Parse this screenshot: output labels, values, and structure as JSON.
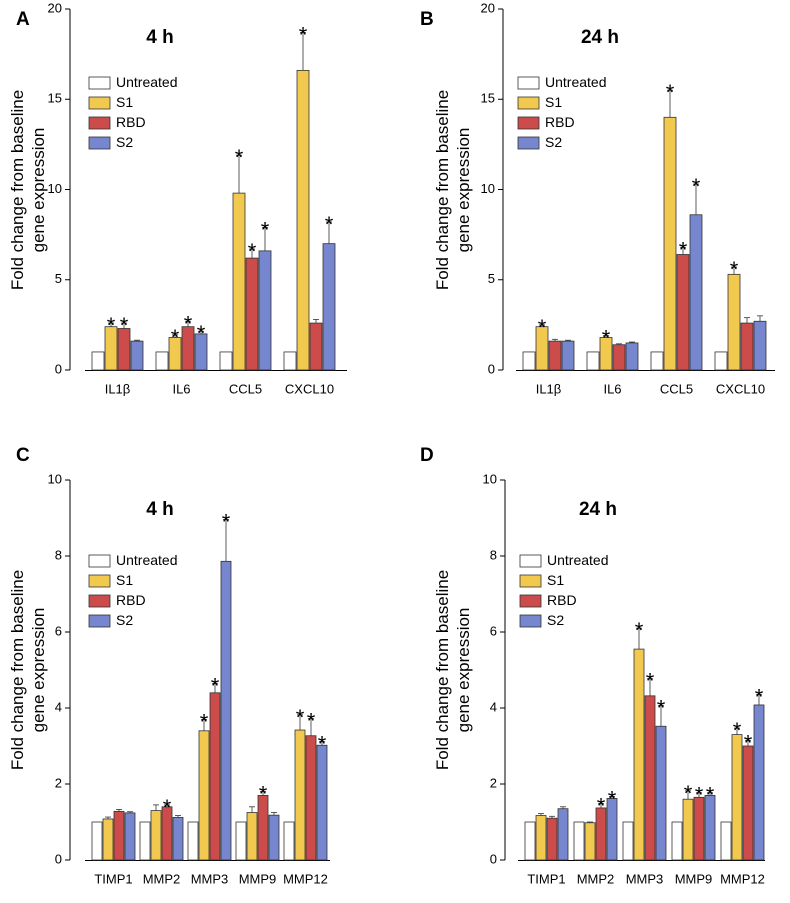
{
  "colors": {
    "Untreated": "#ffffff",
    "S1": "#f2c94f",
    "RBD": "#cc4b4b",
    "S2": "#7686cf"
  },
  "chart_data": [
    {
      "panel": "A",
      "type": "bar",
      "title": "4 h",
      "ylabel": [
        "Fold change from baseline",
        "gene expression"
      ],
      "ylim": [
        0,
        20
      ],
      "yticks": [
        0,
        5,
        10,
        15,
        20
      ],
      "categories": [
        "IL1β",
        "IL6",
        "CCL5",
        "CXCL10"
      ],
      "series": [
        {
          "name": "Untreated",
          "values": [
            1,
            1,
            1,
            1
          ],
          "errors": [
            0,
            0,
            0,
            0
          ],
          "sig": [
            false,
            false,
            false,
            false
          ]
        },
        {
          "name": "S1",
          "values": [
            2.4,
            1.8,
            9.8,
            16.6
          ],
          "errors": [
            0.2,
            0.15,
            2.1,
            2.1
          ],
          "sig": [
            true,
            true,
            true,
            true
          ]
        },
        {
          "name": "RBD",
          "values": [
            2.3,
            2.4,
            6.2,
            2.6
          ],
          "errors": [
            0.3,
            0.3,
            0.5,
            0.2
          ],
          "sig": [
            true,
            true,
            true,
            false
          ]
        },
        {
          "name": "S2",
          "values": [
            1.6,
            2.0,
            6.6,
            7.0
          ],
          "errors": [
            0.05,
            0.15,
            1.3,
            1.2
          ],
          "sig": [
            false,
            true,
            true,
            true
          ]
        }
      ],
      "legend": [
        "Untreated",
        "S1",
        "RBD",
        "S2"
      ],
      "legend_position": "top-left"
    },
    {
      "panel": "B",
      "type": "bar",
      "title": "24 h",
      "ylabel": [
        "Fold change from baseline",
        "gene expression"
      ],
      "ylim": [
        0,
        20
      ],
      "yticks": [
        0,
        5,
        10,
        15,
        20
      ],
      "categories": [
        "IL1β",
        "IL6",
        "CCL5",
        "CXCL10"
      ],
      "series": [
        {
          "name": "Untreated",
          "values": [
            1,
            1,
            1,
            1
          ],
          "errors": [
            0,
            0,
            0,
            0
          ],
          "sig": [
            false,
            false,
            false,
            false
          ]
        },
        {
          "name": "S1",
          "values": [
            2.4,
            1.8,
            14.0,
            5.3
          ],
          "errors": [
            0.1,
            0.1,
            1.5,
            0.4
          ],
          "sig": [
            true,
            true,
            true,
            true
          ]
        },
        {
          "name": "RBD",
          "values": [
            1.6,
            1.4,
            6.4,
            2.6
          ],
          "errors": [
            0.1,
            0.05,
            0.4,
            0.3
          ],
          "sig": [
            false,
            false,
            true,
            false
          ]
        },
        {
          "name": "S2",
          "values": [
            1.6,
            1.5,
            8.6,
            2.7
          ],
          "errors": [
            0.05,
            0.05,
            1.7,
            0.3
          ],
          "sig": [
            false,
            false,
            true,
            false
          ]
        }
      ],
      "legend": [
        "Untreated",
        "S1",
        "RBD",
        "S2"
      ],
      "legend_position": "top-left"
    },
    {
      "panel": "C",
      "type": "bar",
      "title": "4 h",
      "ylabel": [
        "Fold change from baseline",
        "gene expression"
      ],
      "ylim": [
        0,
        10
      ],
      "yticks": [
        0,
        2,
        4,
        6,
        8,
        10
      ],
      "categories": [
        "TIMP1",
        "MMP2",
        "MMP3",
        "MMP9",
        "MMP12"
      ],
      "series": [
        {
          "name": "Untreated",
          "values": [
            1,
            1,
            1,
            1,
            1
          ],
          "errors": [
            0,
            0,
            0,
            0,
            0
          ],
          "sig": [
            false,
            false,
            false,
            false,
            false
          ]
        },
        {
          "name": "S1",
          "values": [
            1.08,
            1.3,
            3.4,
            1.25,
            3.42
          ],
          "errors": [
            0.05,
            0.15,
            0.3,
            0.15,
            0.4
          ],
          "sig": [
            false,
            false,
            true,
            false,
            true
          ]
        },
        {
          "name": "RBD",
          "values": [
            1.28,
            1.4,
            4.4,
            1.7,
            3.27
          ],
          "errors": [
            0.05,
            0.05,
            0.25,
            0.1,
            0.45
          ],
          "sig": [
            false,
            true,
            true,
            true,
            true
          ]
        },
        {
          "name": "S2",
          "values": [
            1.24,
            1.12,
            7.86,
            1.18,
            3.02
          ],
          "errors": [
            0.03,
            0.05,
            1.1,
            0.07,
            0.1
          ],
          "sig": [
            false,
            false,
            true,
            false,
            true
          ]
        }
      ],
      "legend": [
        "Untreated",
        "S1",
        "RBD",
        "S2"
      ],
      "legend_position": "top-left"
    },
    {
      "panel": "D",
      "type": "bar",
      "title": "24 h",
      "ylabel": [
        "Fold change from baseline",
        "gene expression"
      ],
      "ylim": [
        0,
        10
      ],
      "yticks": [
        0,
        2,
        4,
        6,
        8,
        10
      ],
      "categories": [
        "TIMP1",
        "MMP2",
        "MMP3",
        "MMP9",
        "MMP12"
      ],
      "series": [
        {
          "name": "Untreated",
          "values": [
            1,
            1,
            1,
            1,
            1
          ],
          "errors": [
            0,
            0,
            0,
            0,
            0
          ],
          "sig": [
            false,
            false,
            false,
            false,
            false
          ]
        },
        {
          "name": "S1",
          "values": [
            1.17,
            0.98,
            5.55,
            1.6,
            3.3
          ],
          "errors": [
            0.05,
            0.02,
            0.55,
            0.22,
            0.17
          ],
          "sig": [
            false,
            false,
            true,
            true,
            true
          ]
        },
        {
          "name": "RBD",
          "values": [
            1.1,
            1.37,
            4.32,
            1.65,
            3.0
          ],
          "errors": [
            0.05,
            0.12,
            0.45,
            0.12,
            0.15
          ],
          "sig": [
            false,
            true,
            true,
            true,
            true
          ]
        },
        {
          "name": "S2",
          "values": [
            1.35,
            1.62,
            3.52,
            1.7,
            4.08
          ],
          "errors": [
            0.05,
            0.05,
            0.55,
            0.07,
            0.28
          ],
          "sig": [
            false,
            true,
            true,
            true,
            true
          ]
        }
      ],
      "legend": [
        "Untreated",
        "S1",
        "RBD",
        "S2"
      ],
      "legend_position": "top-left"
    }
  ]
}
